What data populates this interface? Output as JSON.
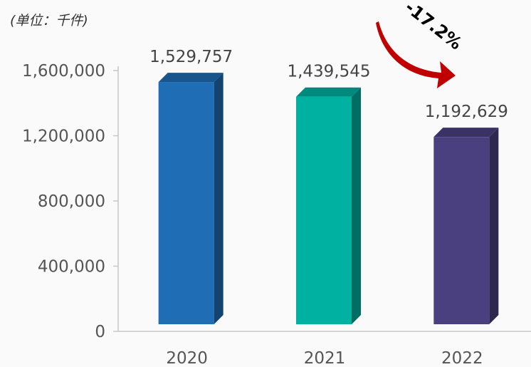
{
  "unit_label": "(单位：千件)",
  "annotation": {
    "change_text": "-17.2%",
    "arrow_color": "#c00000"
  },
  "chart_data": {
    "type": "bar",
    "style": "3d-bar",
    "categories": [
      "2020",
      "2021",
      "2022"
    ],
    "values": [
      1529757,
      1439545,
      1192629
    ],
    "data_labels": [
      "1,529,757",
      "1,439,545",
      "1,192,629"
    ],
    "bar_colors": [
      "#1f6db5",
      "#00b0a0",
      "#4a4080"
    ],
    "ylim": [
      0,
      1600000
    ],
    "yticks": [
      0,
      400000,
      800000,
      1200000,
      1600000
    ],
    "ytick_labels": [
      "0",
      "400,000",
      "800,000",
      "1,200,000",
      "1,600,000"
    ],
    "grid": false,
    "legend": "none"
  }
}
